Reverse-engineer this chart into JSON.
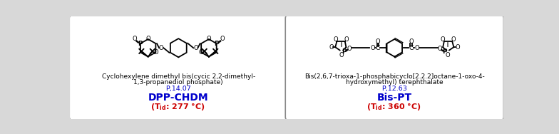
{
  "bg_color": "#d8d8d8",
  "panel_bg": "#ffffff",
  "panel_border": "#aaaaaa",
  "shadow_color": "#aaaaaa",
  "panel1": {
    "iupac_line1": "Cyclohexylene dimethyl bis(cycic 2,2-dimethyl-",
    "iupac_line2": "1,3-propanediol phosphate)",
    "phosphorus": "P,14.07",
    "name": "DPP-CHDM",
    "tid_value": ": 277 °C)"
  },
  "panel2": {
    "iupac_line1": "Bis(2,6,7-trioxa-1-phosphabicyclo[2.2.2]octane-1-oxo-4-",
    "iupac_line2": "hydroxymethyl) terephthalate",
    "phosphorus": "P,12.63",
    "name": "Bis-PT",
    "tid_value": ": 360 °C)"
  },
  "blue_color": "#0000cc",
  "red_color": "#cc0000",
  "black_color": "#000000"
}
